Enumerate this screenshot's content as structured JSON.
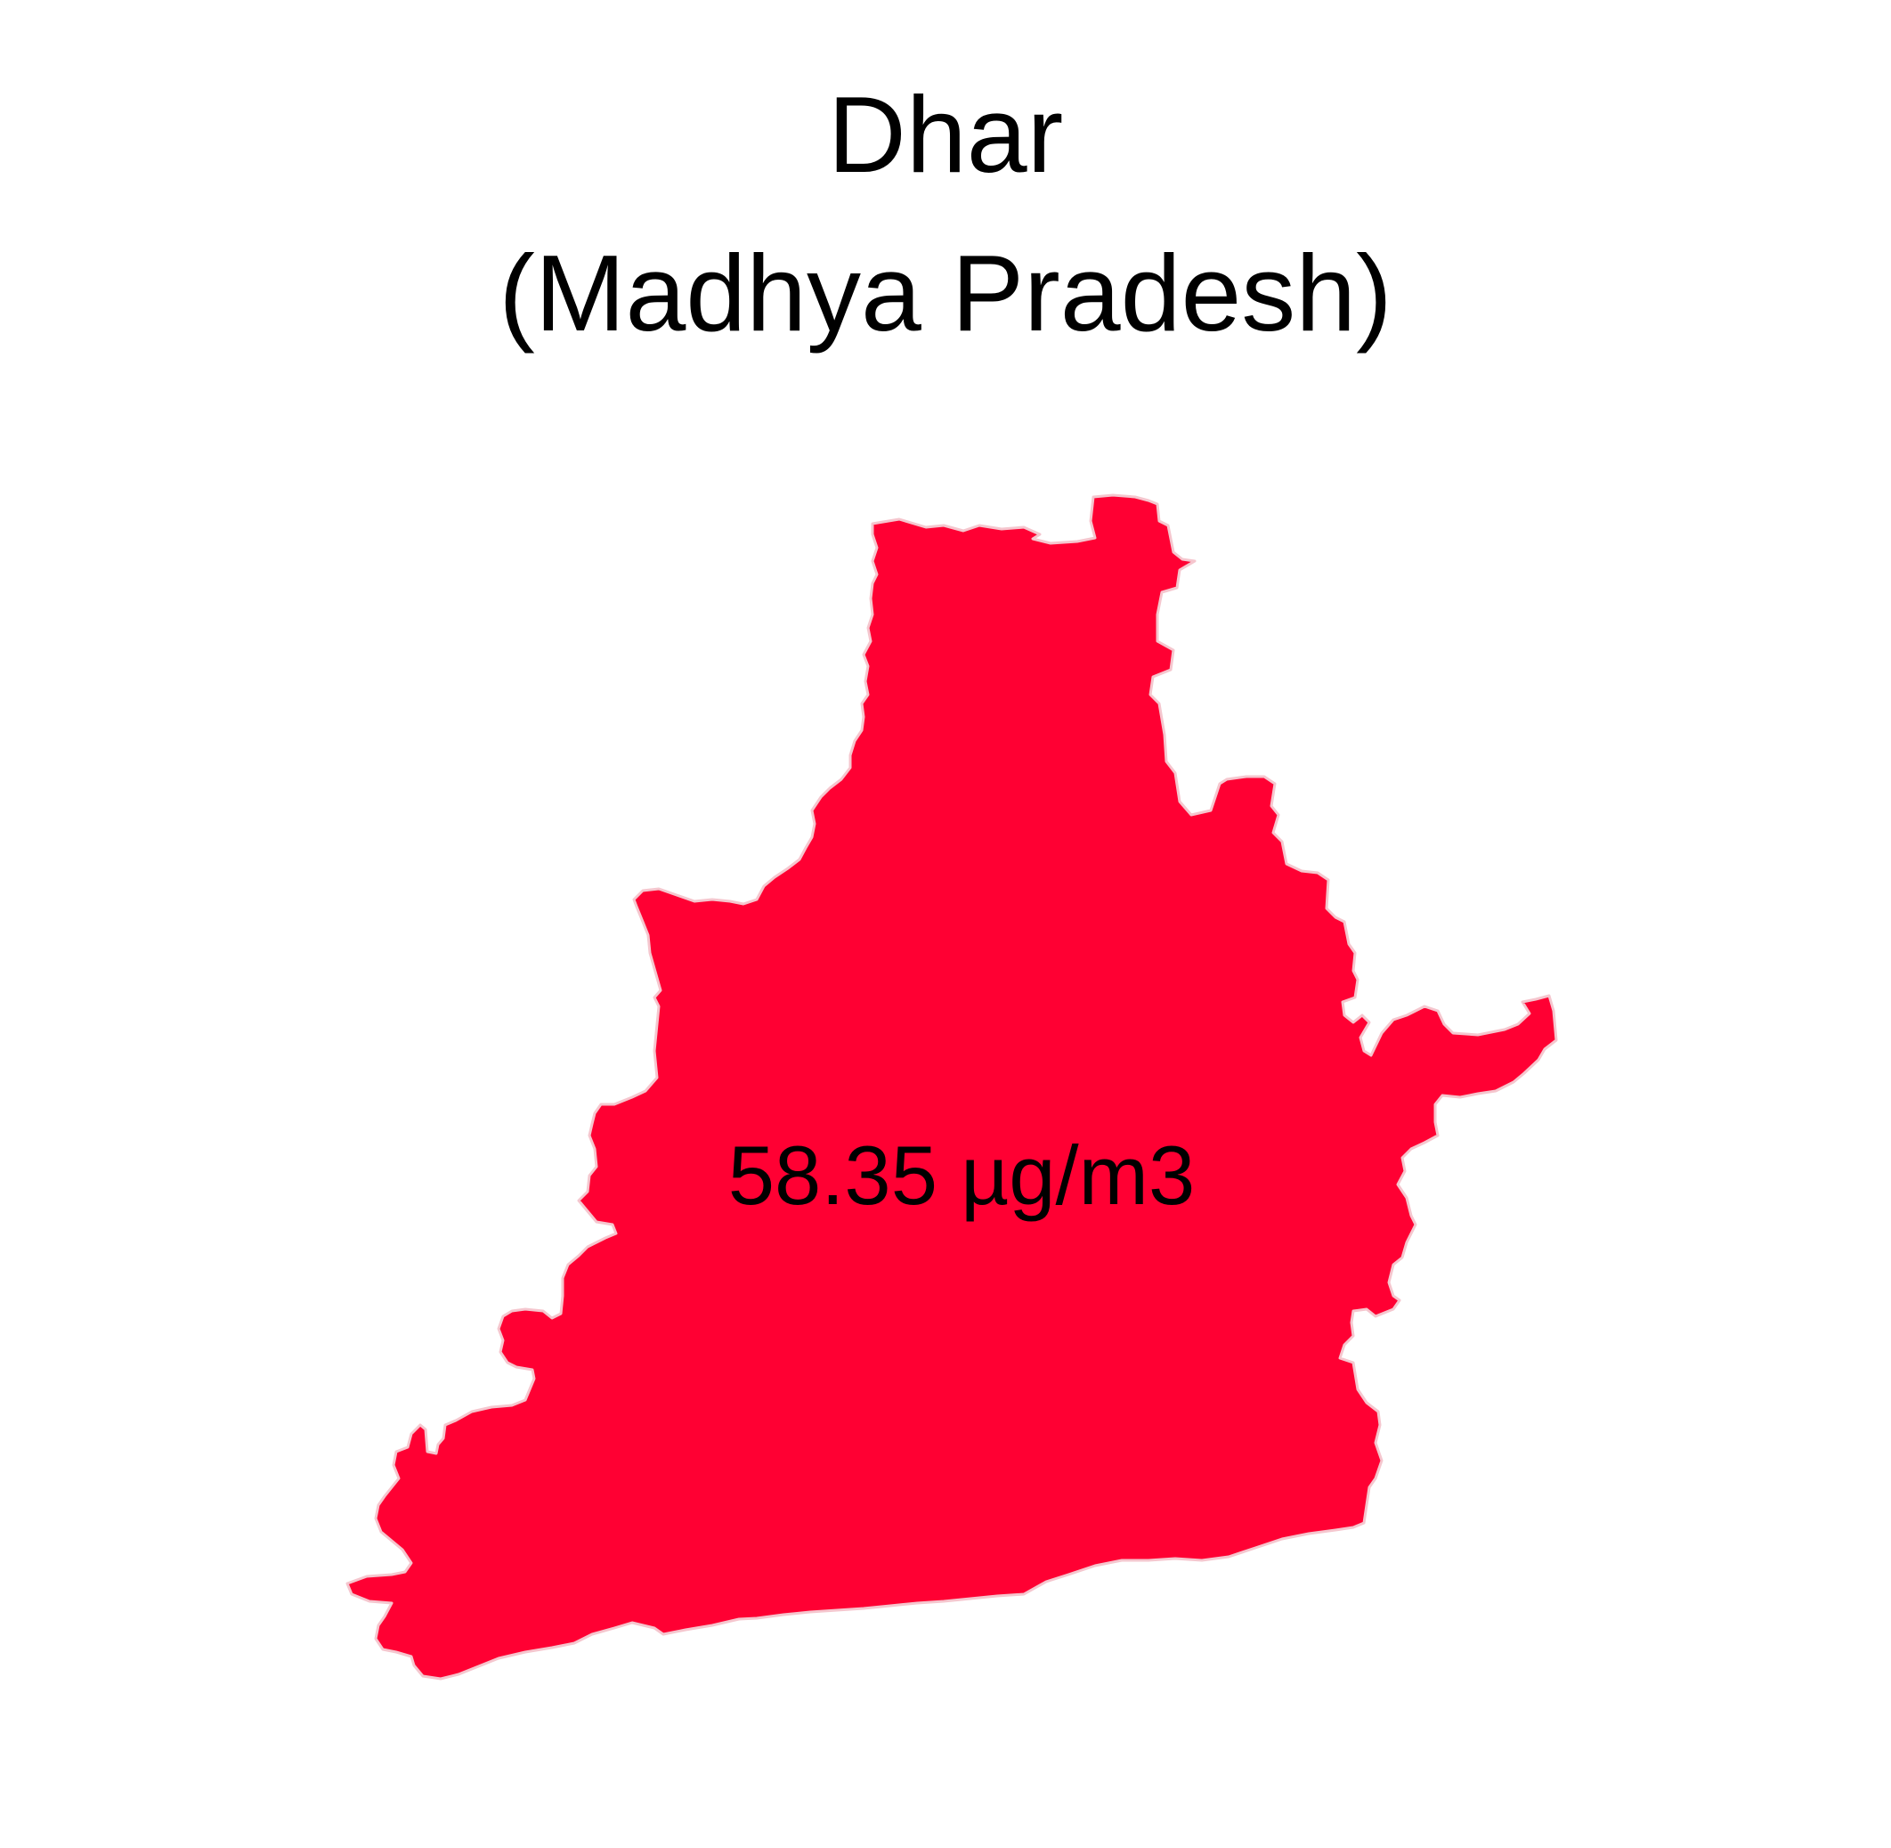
{
  "map": {
    "title_line1": "Dhar",
    "title_line2": "(Madhya Pradesh)",
    "region_value_label": "58.35 µg/m3",
    "region_fill_color": "#FF0033",
    "region_stroke_color": "#F5C6CE",
    "text_color": "#000000",
    "background_color": "#FFFFFF"
  }
}
